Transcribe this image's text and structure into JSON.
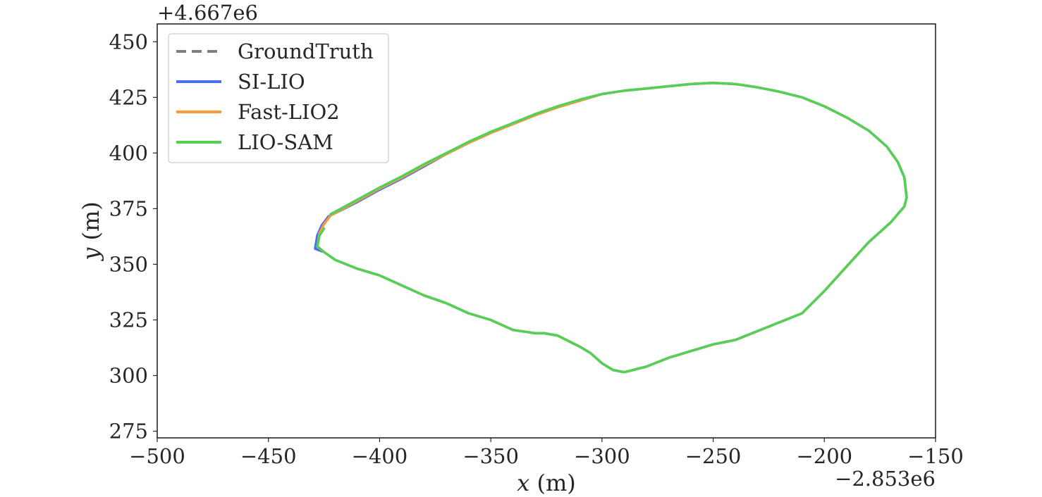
{
  "chart_data": {
    "type": "line",
    "title": "",
    "xlabel_var": "x",
    "xlabel_unit": " (m)",
    "ylabel_var": "y",
    "ylabel_unit": " (m)",
    "x_offset_label": "−2.853e6",
    "y_offset_label": "+4.667e6",
    "xlim": [
      -500,
      -150
    ],
    "ylim": [
      272,
      458
    ],
    "x_ticks": [
      -500,
      -450,
      -400,
      -350,
      -300,
      -250,
      -200,
      -150
    ],
    "x_tick_labels": [
      "−500",
      "−450",
      "−400",
      "−350",
      "−300",
      "−250",
      "−200",
      "−150"
    ],
    "y_ticks": [
      275,
      300,
      325,
      350,
      375,
      400,
      425,
      450
    ],
    "y_tick_labels": [
      "275",
      "300",
      "325",
      "350",
      "375",
      "400",
      "425",
      "450"
    ],
    "grid": false,
    "legend_position": "top-left",
    "series": [
      {
        "name": "GroundTruth",
        "color": "#808080",
        "style": "dashed",
        "x": [
          -422,
          -410,
          -400,
          -390,
          -380,
          -370,
          -360,
          -350,
          -340,
          -330,
          -320,
          -310,
          -300,
          -290,
          -280,
          -270,
          -260,
          -250,
          -240,
          -230,
          -220,
          -210,
          -200,
          -190,
          -180,
          -172,
          -167,
          -164,
          -163,
          -164,
          -170,
          -180,
          -190,
          -200,
          -210,
          -220,
          -230,
          -240,
          -250,
          -260,
          -270,
          -280,
          -290,
          -295,
          -300,
          -305,
          -310,
          -315,
          -320,
          -326,
          -330,
          -340,
          -350,
          -360,
          -370,
          -380,
          -390,
          -400,
          -410,
          -420,
          -425,
          -428,
          -427,
          -425,
          -422
        ],
        "y": [
          372,
          378.5,
          384,
          389,
          394.5,
          399.5,
          404.5,
          409,
          413,
          417,
          420.5,
          423.5,
          426.5,
          428,
          429,
          430,
          431,
          431.5,
          431,
          429.5,
          427.5,
          425,
          421,
          416,
          410,
          403,
          396,
          389,
          380,
          376,
          369,
          360,
          349,
          338,
          328,
          324,
          320,
          316,
          314,
          311,
          308,
          304,
          301.5,
          302.5,
          305.5,
          310,
          313,
          315.5,
          318,
          319,
          319,
          320.5,
          325,
          328,
          332.5,
          336,
          340.5,
          345,
          348,
          352,
          355.5,
          358,
          364,
          368,
          372
        ]
      },
      {
        "name": "SI-LIO",
        "color": "#4a6ff0",
        "style": "solid",
        "x": [
          -423,
          -410,
          -400,
          -390,
          -380,
          -370,
          -360,
          -350,
          -340,
          -330,
          -320,
          -310,
          -300,
          -290,
          -280,
          -270,
          -260,
          -250,
          -240,
          -230,
          -220,
          -210,
          -200,
          -190,
          -180,
          -172,
          -167,
          -164,
          -163,
          -164,
          -170,
          -180,
          -190,
          -200,
          -210,
          -220,
          -230,
          -240,
          -250,
          -260,
          -270,
          -280,
          -290,
          -295,
          -300,
          -305,
          -310,
          -315,
          -320,
          -326,
          -330,
          -340,
          -350,
          -360,
          -370,
          -380,
          -390,
          -400,
          -410,
          -420,
          -425,
          -429,
          -428,
          -426,
          -423
        ],
        "y": [
          371.5,
          378,
          383.5,
          388.5,
          394,
          399.5,
          404.5,
          409,
          413,
          417,
          420.5,
          423.5,
          426.5,
          428,
          429,
          430,
          431,
          431.5,
          431,
          429.5,
          427.5,
          425,
          421,
          416,
          410,
          403,
          396,
          389,
          380,
          376,
          369,
          360,
          349,
          338,
          328,
          324,
          320,
          316,
          314,
          311,
          308,
          304,
          301.5,
          302.5,
          305.5,
          310,
          313,
          315.5,
          318,
          319,
          319,
          320.5,
          325,
          328,
          332.5,
          336,
          340.5,
          345,
          348,
          352,
          355.5,
          357,
          363,
          367.5,
          371.5
        ]
      },
      {
        "name": "Fast-LIO2",
        "color": "#fd9a3a",
        "style": "solid",
        "x": [
          -422,
          -410,
          -400,
          -390,
          -380,
          -370,
          -360,
          -350,
          -340,
          -330,
          -320,
          -310,
          -300,
          -290,
          -280,
          -270,
          -260,
          -250,
          -240,
          -230,
          -220,
          -210,
          -200,
          -190,
          -180,
          -172,
          -167,
          -164,
          -163,
          -164,
          -170,
          -180,
          -190,
          -200,
          -210,
          -220,
          -230,
          -240,
          -250,
          -260,
          -270,
          -280,
          -290,
          -295,
          -300,
          -305,
          -310,
          -315,
          -320,
          -326,
          -330,
          -340,
          -350,
          -360,
          -370,
          -380,
          -390,
          -400,
          -410,
          -420,
          -425,
          -428,
          -427,
          -425,
          -422
        ],
        "y": [
          372,
          378.5,
          384,
          389,
          394.5,
          399.5,
          404.5,
          409,
          413,
          417,
          420.5,
          423.5,
          426.5,
          428,
          429,
          430,
          431,
          431.5,
          431,
          429.5,
          427.5,
          425,
          421,
          416,
          410,
          403,
          396,
          389,
          380,
          376,
          369,
          360,
          349,
          338,
          328,
          324,
          320,
          316,
          314,
          311,
          308,
          304,
          301.5,
          302.5,
          305.5,
          310,
          313,
          315.5,
          318,
          319,
          319,
          320.5,
          325,
          328,
          332.5,
          336,
          340.5,
          345,
          348,
          352,
          355.5,
          358,
          364,
          368,
          372
        ]
      },
      {
        "name": "LIO-SAM",
        "color": "#55d056",
        "style": "solid",
        "x": [
          -422,
          -410,
          -400,
          -390,
          -380,
          -370,
          -360,
          -350,
          -340,
          -330,
          -320,
          -310,
          -300,
          -290,
          -280,
          -270,
          -260,
          -250,
          -240,
          -230,
          -220,
          -210,
          -200,
          -190,
          -180,
          -172,
          -167,
          -164,
          -163,
          -164,
          -170,
          -180,
          -190,
          -200,
          -210,
          -220,
          -230,
          -240,
          -250,
          -260,
          -270,
          -280,
          -290,
          -295,
          -300,
          -305,
          -310,
          -315,
          -320,
          -326,
          -330,
          -340,
          -350,
          -360,
          -370,
          -380,
          -390,
          -400,
          -410,
          -420,
          -425,
          -428,
          -427,
          -425
        ],
        "y": [
          372.5,
          379,
          384.5,
          389.5,
          395,
          400,
          405,
          409.5,
          413.5,
          417.5,
          421,
          424,
          426.5,
          428,
          429,
          430,
          431,
          431.5,
          431,
          429.5,
          427.5,
          425,
          421,
          416,
          410,
          403,
          396,
          389,
          380,
          376,
          369,
          360,
          349,
          338,
          328,
          324,
          320,
          316,
          314,
          311,
          308,
          304,
          301.5,
          302.5,
          305.5,
          310,
          313,
          315.5,
          318,
          319,
          319,
          320.5,
          325,
          328,
          332.5,
          336,
          340.5,
          345,
          348,
          352,
          355.5,
          358,
          363,
          366
        ]
      }
    ]
  }
}
